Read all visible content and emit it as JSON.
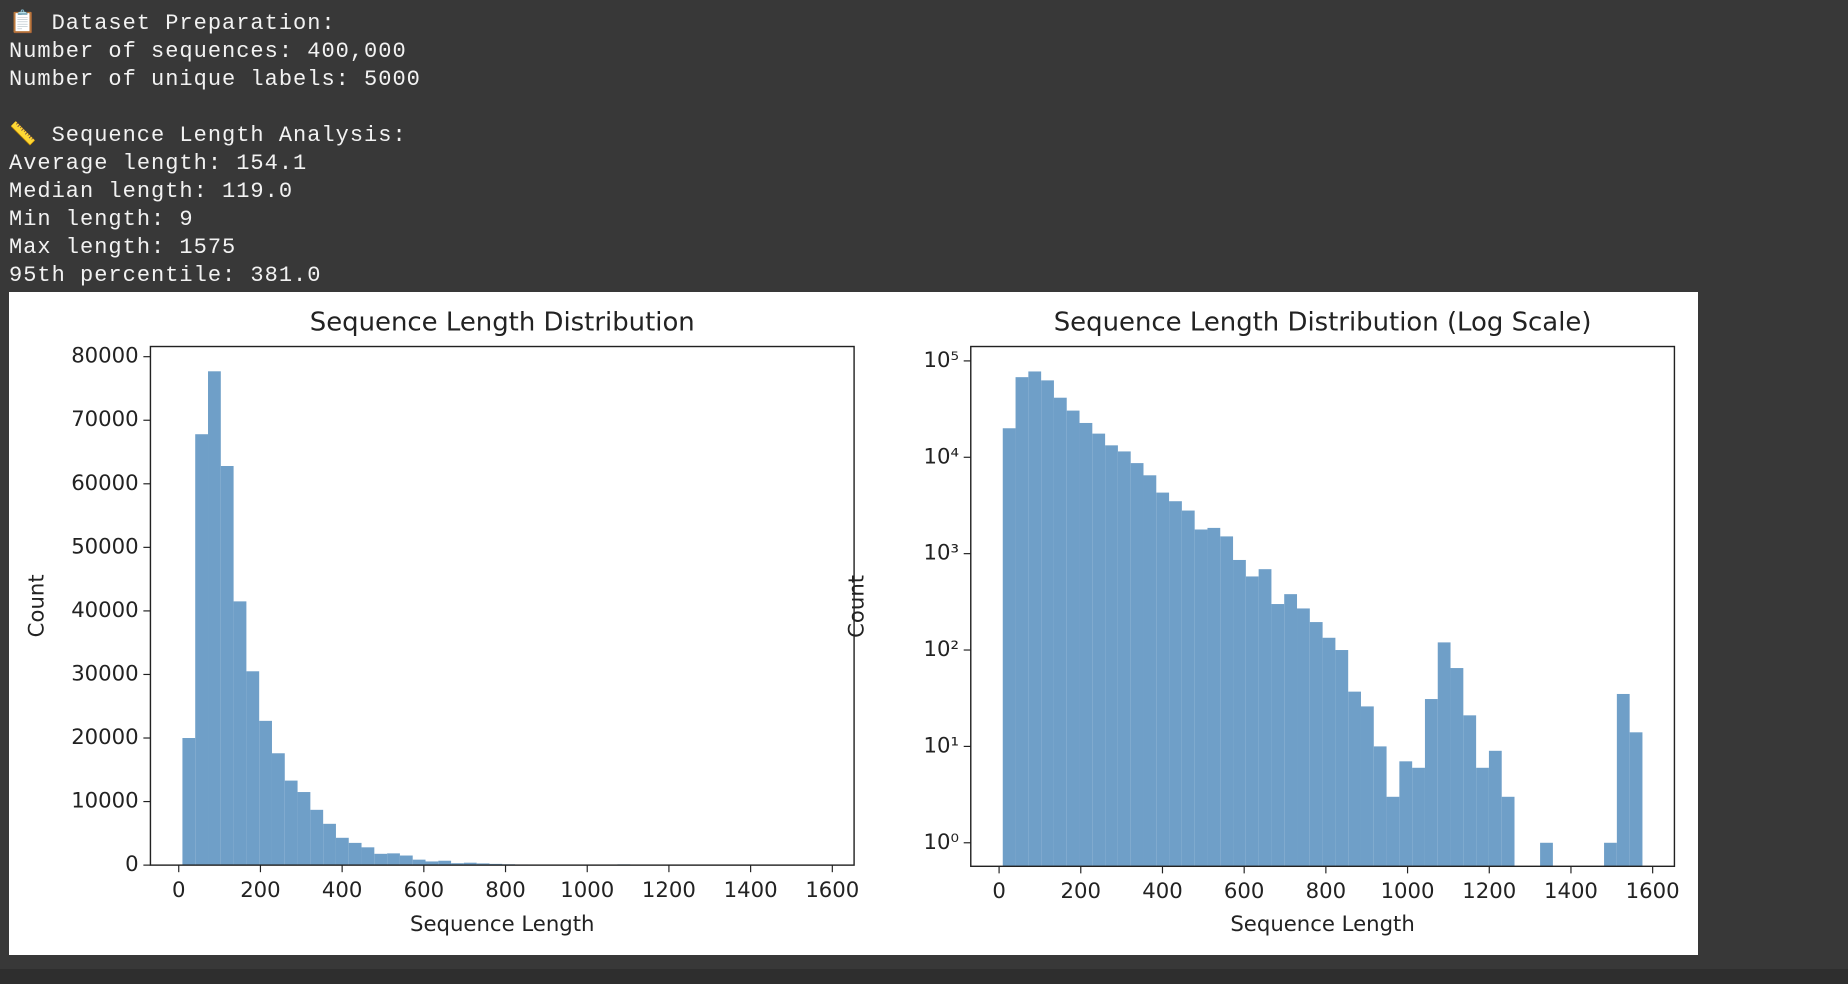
{
  "console": {
    "sections": [
      {
        "title": "📋 Dataset Preparation:",
        "lines": [
          "Number of sequences: 400,000",
          "Number of unique labels: 5000"
        ]
      },
      {
        "title": "📏 Sequence Length Analysis:",
        "lines": [
          "Average length: 154.1",
          "Median length: 119.0",
          "Min length: 9",
          "Max length: 1575",
          "95th percentile: 381.0"
        ]
      }
    ]
  },
  "chart_data": [
    {
      "type": "histogram",
      "title": "Sequence Length Distribution",
      "x_label": "Sequence Length",
      "y_label": "Count",
      "color": "#6f9fc8",
      "log_y": false,
      "bins": [
        9,
        40.32,
        71.64,
        102.96,
        134.28,
        165.6,
        196.92,
        228.24,
        259.56,
        290.88,
        322.2,
        353.52,
        384.84,
        416.16,
        447.48,
        478.8,
        510.12,
        541.44,
        572.76,
        604.08,
        635.4,
        666.72,
        698.04,
        729.36,
        760.68,
        792,
        823.32,
        854.64,
        885.96,
        917.28,
        948.6,
        979.92,
        1011.24,
        1042.56,
        1073.88,
        1105.2,
        1136.52,
        1167.84,
        1199.16,
        1230.48,
        1261.8,
        1293.12,
        1324.44,
        1355.76,
        1387.08,
        1418.4,
        1449.72,
        1481.04,
        1512.36,
        1543.68,
        1575
      ],
      "values": [
        20000,
        67800,
        77700,
        62800,
        41500,
        30500,
        22700,
        17600,
        13300,
        11500,
        8700,
        6500,
        4300,
        3500,
        2800,
        1780,
        1850,
        1510,
        860,
        580,
        690,
        300,
        380,
        270,
        195,
        134,
        100,
        37,
        26,
        10,
        3,
        7,
        6,
        31,
        120,
        65,
        21,
        6,
        9,
        3,
        0,
        0,
        1,
        0,
        0,
        0,
        0,
        1,
        35,
        14
      ],
      "xlim": [
        -69.3,
        1653.3
      ],
      "ylim": [
        0,
        81600
      ],
      "xticks": [
        0,
        200,
        400,
        600,
        800,
        1000,
        1200,
        1400,
        1600
      ],
      "yticks": [
        0,
        10000,
        20000,
        30000,
        40000,
        50000,
        60000,
        70000,
        80000
      ]
    },
    {
      "type": "histogram",
      "title": "Sequence Length Distribution (Log Scale)",
      "x_label": "Sequence Length",
      "y_label": "Count",
      "color": "#6f9fc8",
      "log_y": true,
      "bins": [
        9,
        40.32,
        71.64,
        102.96,
        134.28,
        165.6,
        196.92,
        228.24,
        259.56,
        290.88,
        322.2,
        353.52,
        384.84,
        416.16,
        447.48,
        478.8,
        510.12,
        541.44,
        572.76,
        604.08,
        635.4,
        666.72,
        698.04,
        729.36,
        760.68,
        792,
        823.32,
        854.64,
        885.96,
        917.28,
        948.6,
        979.92,
        1011.24,
        1042.56,
        1073.88,
        1105.2,
        1136.52,
        1167.84,
        1199.16,
        1230.48,
        1261.8,
        1293.12,
        1324.44,
        1355.76,
        1387.08,
        1418.4,
        1449.72,
        1481.04,
        1512.36,
        1543.68,
        1575
      ],
      "values": [
        20000,
        67800,
        77700,
        62800,
        41500,
        30500,
        22700,
        17600,
        13300,
        11500,
        8700,
        6500,
        4300,
        3500,
        2800,
        1780,
        1850,
        1510,
        860,
        580,
        690,
        300,
        380,
        270,
        195,
        134,
        100,
        37,
        26,
        10,
        3,
        7,
        6,
        31,
        120,
        65,
        21,
        6,
        9,
        3,
        0,
        0,
        1,
        0,
        0,
        0,
        0,
        1,
        35,
        14
      ],
      "xlim": [
        -69.3,
        1653.3
      ],
      "ylim": [
        0.57,
        141000
      ],
      "xticks": [
        0,
        200,
        400,
        600,
        800,
        1000,
        1200,
        1400,
        1600
      ],
      "yticks": [
        {
          "value": 1,
          "label": "10⁰"
        },
        {
          "value": 10,
          "label": "10¹"
        },
        {
          "value": 100,
          "label": "10²"
        },
        {
          "value": 1000,
          "label": "10³"
        },
        {
          "value": 10000,
          "label": "10⁴"
        },
        {
          "value": 100000,
          "label": "10⁵"
        }
      ]
    }
  ]
}
